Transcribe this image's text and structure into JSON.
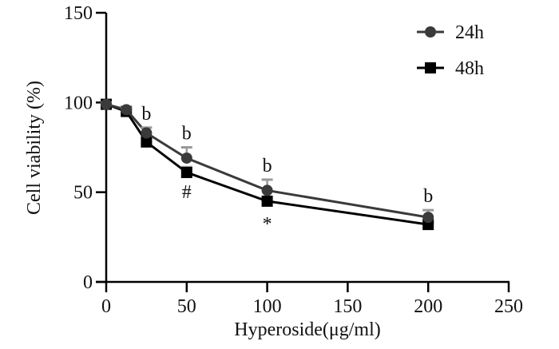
{
  "chart_data": {
    "type": "line",
    "title": "",
    "xlabel": "Hyperoside(μg/ml)",
    "ylabel": "Cell viability (%)",
    "xlim": [
      0,
      250
    ],
    "ylim": [
      0,
      150
    ],
    "xticks": [
      "0",
      "50",
      "100",
      "150",
      "200",
      "250"
    ],
    "yticks": [
      "0",
      "50",
      "100",
      "150"
    ],
    "grid": false,
    "legend_position": "top-right",
    "x": [
      0,
      12.5,
      25,
      50,
      100,
      200
    ],
    "series": [
      {
        "name": "24h",
        "marker": "circle",
        "color": "#3a3a3a",
        "values": [
          99,
          96,
          83,
          69,
          51,
          36
        ],
        "error": [
          1,
          1,
          3,
          6,
          6,
          4
        ]
      },
      {
        "name": "48h",
        "marker": "square",
        "color": "#000000",
        "values": [
          99,
          95,
          78,
          61,
          45,
          32
        ],
        "error": [
          1,
          1,
          2,
          3,
          2,
          1
        ]
      }
    ],
    "annotations": [
      {
        "text": "b",
        "x": 25,
        "series": "24h",
        "position": "above"
      },
      {
        "text": "b",
        "x": 50,
        "series": "24h",
        "position": "above"
      },
      {
        "text": "b",
        "x": 100,
        "series": "24h",
        "position": "above"
      },
      {
        "text": "b",
        "x": 200,
        "series": "24h",
        "position": "above"
      },
      {
        "text": "#",
        "x": 50,
        "series": "48h",
        "position": "below"
      },
      {
        "text": "*",
        "x": 100,
        "series": "48h",
        "position": "below"
      }
    ]
  }
}
